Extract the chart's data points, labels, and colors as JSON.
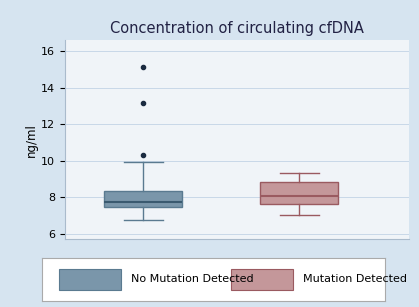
{
  "title": "Concentration of circulating cfDNA",
  "ylabel": "ng/ml",
  "ylim": [
    5.7,
    16.6
  ],
  "yticks": [
    6,
    8,
    10,
    12,
    14,
    16
  ],
  "background_color": "#d6e4f0",
  "plot_bg_color": "#f0f4f8",
  "grid_color": "#c8d8e8",
  "box1": {
    "label": "No Mutation Detected",
    "color": "#7a96aa",
    "edge_color": "#5a7a90",
    "median_color": "#3a5a70",
    "whislo": 6.78,
    "q1": 7.45,
    "med": 7.72,
    "q3": 8.35,
    "whishi": 9.95,
    "fliers": [
      10.3,
      13.15,
      15.1
    ],
    "x": 1
  },
  "box2": {
    "label": "Mutation Detected",
    "color": "#c4979a",
    "edge_color": "#9a5a60",
    "median_color": "#9a5a60",
    "whislo": 7.05,
    "q1": 7.65,
    "med": 8.05,
    "q3": 8.85,
    "whishi": 9.35,
    "fliers": [],
    "x": 2
  },
  "title_fontsize": 10.5,
  "label_fontsize": 8.5,
  "tick_fontsize": 8,
  "legend_fontsize": 8
}
